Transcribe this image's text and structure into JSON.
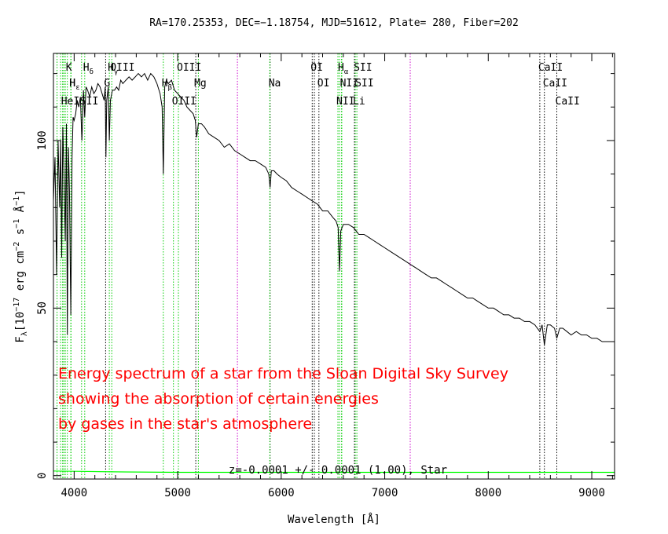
{
  "chart_data": {
    "type": "line",
    "title": "RA=170.25353, DEC=−1.18754, MJD=51612, Plate= 280, Fiber=202",
    "xlabel": "Wavelength [Å]",
    "ylabel": "F",
    "ylabel_sub": "λ",
    "ylabel_units": "[10",
    "ylabel_exp1": "−17",
    "ylabel_mid": " erg cm",
    "ylabel_exp2": "−2",
    "ylabel_mid2": " s",
    "ylabel_exp3": "−1",
    "ylabel_mid3": " Å",
    "ylabel_exp4": "−1",
    "ylabel_end": "]",
    "xlim": [
      3800,
      9220
    ],
    "ylim": [
      -1,
      126
    ],
    "xticks": [
      4000,
      5000,
      6000,
      7000,
      8000,
      9000
    ],
    "yticks": [
      0,
      50,
      100
    ],
    "grid": false,
    "legend": "none",
    "annotation": "z=-0.0001 +/- 0.0001 (1.00), Star",
    "overlay_text": [
      "Energy spectrum of a star from the Sloan Digital Sky Survey",
      "showing the absorption of certain energies",
      "by gases in the star's atmosphere"
    ],
    "series": [
      {
        "role": "flux",
        "color": "#000000",
        "x": [
          3800,
          3815,
          3830,
          3845,
          3860,
          3870,
          3880,
          3890,
          3900,
          3915,
          3925,
          3934,
          3945,
          3955,
          3968,
          3980,
          3990,
          4000,
          4015,
          4030,
          4045,
          4060,
          4075,
          4090,
          4102,
          4115,
          4130,
          4150,
          4170,
          4190,
          4210,
          4230,
          4250,
          4270,
          4290,
          4300,
          4307,
          4315,
          4330,
          4340,
          4350,
          4370,
          4390,
          4410,
          4430,
          4450,
          4470,
          4500,
          4530,
          4560,
          4590,
          4620,
          4650,
          4680,
          4710,
          4740,
          4770,
          4800,
          4830,
          4850,
          4861,
          4875,
          4890,
          4910,
          4940,
          4970,
          5000,
          5030,
          5060,
          5090,
          5120,
          5150,
          5170,
          5183,
          5200,
          5230,
          5260,
          5300,
          5350,
          5400,
          5450,
          5500,
          5550,
          5600,
          5650,
          5700,
          5750,
          5800,
          5850,
          5880,
          5893,
          5905,
          5930,
          5960,
          6000,
          6050,
          6100,
          6150,
          6200,
          6250,
          6300,
          6350,
          6400,
          6450,
          6500,
          6530,
          6550,
          6563,
          6575,
          6600,
          6650,
          6700,
          6750,
          6800,
          6850,
          6900,
          6950,
          7000,
          7050,
          7100,
          7150,
          7200,
          7250,
          7300,
          7350,
          7400,
          7450,
          7500,
          7550,
          7600,
          7650,
          7700,
          7750,
          7800,
          7850,
          7900,
          7950,
          8000,
          8050,
          8100,
          8150,
          8200,
          8250,
          8300,
          8350,
          8400,
          8450,
          8498,
          8520,
          8542,
          8570,
          8600,
          8640,
          8662,
          8690,
          8720,
          8760,
          8800,
          8850,
          8900,
          8950,
          9000,
          9050,
          9100,
          9150,
          9200,
          9220
        ],
        "y": [
          82,
          95,
          60,
          100,
          80,
          100,
          65,
          104,
          92,
          70,
          105,
          42,
          98,
          85,
          48,
          95,
          107,
          106,
          108,
          112,
          110,
          113,
          100,
          115,
          107,
          116,
          115,
          113,
          116,
          114,
          115,
          117,
          116,
          114,
          112,
          116,
          95,
          112,
          116,
          100,
          112,
          115,
          115,
          116,
          115,
          118,
          117,
          118,
          119,
          118,
          119,
          120,
          119,
          120,
          118,
          120,
          119,
          117,
          114,
          110,
          90,
          116,
          118,
          117,
          118,
          115,
          114,
          113,
          112,
          110,
          109,
          108,
          106,
          101,
          105,
          105,
          104,
          102,
          101,
          100,
          98,
          99,
          97,
          96,
          95,
          94,
          94,
          93,
          92,
          90,
          86,
          91,
          91,
          90,
          89,
          88,
          86,
          85,
          84,
          83,
          82,
          81,
          79,
          79,
          77,
          76,
          74,
          61,
          73,
          75,
          75,
          74,
          72,
          72,
          71,
          70,
          69,
          68,
          67,
          66,
          65,
          64,
          63,
          62,
          61,
          60,
          59,
          59,
          58,
          57,
          56,
          55,
          54,
          53,
          53,
          52,
          51,
          50,
          50,
          49,
          48,
          48,
          47,
          47,
          46,
          46,
          45,
          43,
          45,
          39,
          45,
          45,
          44,
          41,
          44,
          44,
          43,
          42,
          43,
          42,
          42,
          41,
          41,
          40,
          40,
          40,
          40
        ]
      },
      {
        "role": "error",
        "color": "#00ff00",
        "x": [
          3800,
          4000,
          4500,
          5000,
          5500,
          6000,
          6500,
          7000,
          7500,
          8000,
          8500,
          9000,
          9220
        ],
        "y": [
          1.4,
          1.3,
          1.1,
          1.0,
          1.0,
          1.0,
          1.0,
          1.0,
          1.0,
          1.0,
          1.0,
          1.0,
          1.0
        ]
      }
    ],
    "lines": [
      {
        "name": "Hδ",
        "wavelength": 4102,
        "color": "#00cc00",
        "label_row": 0
      },
      {
        "name": "K",
        "wavelength": 3934,
        "color": "#00cc00",
        "label_row": 0
      },
      {
        "name": "Hγ",
        "wavelength": 4340,
        "color": "#00cc00",
        "label_row": 0
      },
      {
        "name": "OIII",
        "wavelength": 4363,
        "color": "#00cc00",
        "label_row": 0
      },
      {
        "name": "OIII",
        "wavelength": 5007,
        "color": "#00cc00",
        "label_row": 0
      },
      {
        "name": "OI",
        "wavelength": 6300,
        "color": "#000000",
        "label_row": 0
      },
      {
        "name": "Hα",
        "wavelength": 6563,
        "color": "#00cc00",
        "label_row": 0
      },
      {
        "name": "SII",
        "wavelength": 6716,
        "color": "#00cc00",
        "label_row": 0
      },
      {
        "name": "CaII",
        "wavelength": 8498,
        "color": "#000000",
        "label_row": 0
      },
      {
        "name": "Hε",
        "wavelength": 3970,
        "color": "#00cc00",
        "label_row": 1
      },
      {
        "name": "H",
        "wavelength": 3968,
        "color": "#00cc00",
        "label_row": 1
      },
      {
        "name": "G",
        "wavelength": 4304,
        "color": "#000000",
        "label_row": 1
      },
      {
        "name": "Hβ",
        "wavelength": 4861,
        "color": "#00cc00",
        "label_row": 1
      },
      {
        "name": "Mg",
        "wavelength": 5175,
        "color": "#000000",
        "label_row": 1
      },
      {
        "name": "Na",
        "wavelength": 5893,
        "color": "#000000",
        "label_row": 1
      },
      {
        "name": "OI",
        "wavelength": 6364,
        "color": "#000000",
        "label_row": 1
      },
      {
        "name": "NII",
        "wavelength": 6583,
        "color": "#00cc00",
        "label_row": 1
      },
      {
        "name": "SII",
        "wavelength": 6731,
        "color": "#00cc00",
        "label_row": 1
      },
      {
        "name": "CaII",
        "wavelength": 8542,
        "color": "#000000",
        "label_row": 1
      },
      {
        "name": "HeI",
        "wavelength": 3889,
        "color": "#00cc00",
        "label_row": 2
      },
      {
        "name": "SII",
        "wavelength": 4072,
        "color": "#00cc00",
        "label_row": 2
      },
      {
        "name": "OIII",
        "wavelength": 4959,
        "color": "#00cc00",
        "label_row": 2
      },
      {
        "name": "NII",
        "wavelength": 6548,
        "color": "#00cc00",
        "label_row": 2
      },
      {
        "name": "Li",
        "wavelength": 6707,
        "color": "#000000",
        "label_row": 2
      },
      {
        "name": "CaII",
        "wavelength": 8662,
        "color": "#000000",
        "label_row": 2
      }
    ],
    "extra_lines": [
      {
        "wavelength": 3835,
        "color": "#00cc00"
      },
      {
        "wavelength": 3869,
        "color": "#00cc00"
      },
      {
        "wavelength": 3900,
        "color": "#00cc00"
      },
      {
        "wavelength": 3915,
        "color": "#00cc00"
      },
      {
        "wavelength": 5200,
        "color": "#00cc00"
      },
      {
        "wavelength": 5577,
        "color": "#cc00cc"
      },
      {
        "wavelength": 5890,
        "color": "#00cc00"
      },
      {
        "wavelength": 6320,
        "color": "#000000"
      },
      {
        "wavelength": 6585,
        "color": "#00cc00"
      },
      {
        "wavelength": 7246,
        "color": "#cc00cc"
      }
    ]
  },
  "colors": {
    "overlay_text": "#ff0000",
    "axes": "#000000",
    "background": "#ffffff"
  }
}
